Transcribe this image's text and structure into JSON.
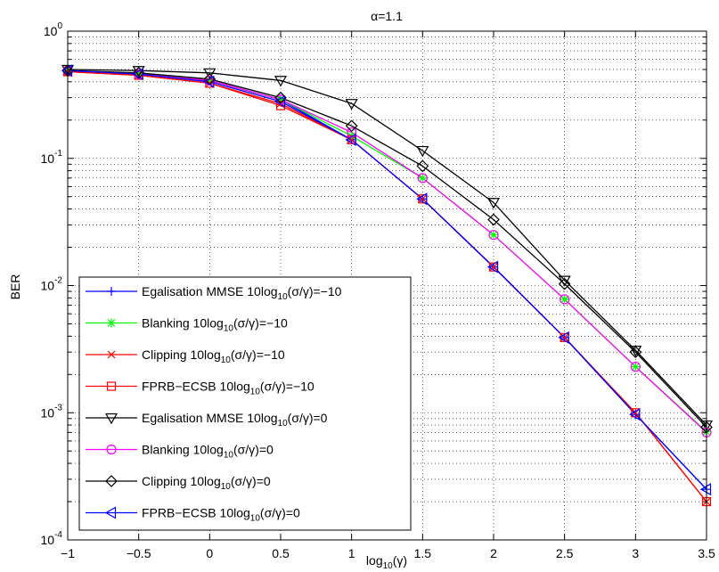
{
  "chart_data": {
    "type": "line",
    "title": "α=1.1",
    "xlabel": "log",
    "xlabel_sub": "10",
    "xlabel_tail": "(γ)",
    "ylabel": "BER",
    "xlim": [
      -1,
      3.5
    ],
    "ylim": [
      0.0001,
      1
    ],
    "yscale": "log",
    "grid": true,
    "legend_position": "bottom-left",
    "x_ticks": [
      -1,
      -0.5,
      0,
      0.5,
      1,
      1.5,
      2,
      2.5,
      3,
      3.5
    ],
    "x_tick_labels": [
      "−1",
      "−0.5",
      "0",
      "0.5",
      "1",
      "1.5",
      "2",
      "2.5",
      "3",
      "3.5"
    ],
    "y_ticks": [
      {
        "base": "10",
        "exp": "0",
        "value": 1
      },
      {
        "base": "10",
        "exp": "-1",
        "value": 0.1
      },
      {
        "base": "10",
        "exp": "-2",
        "value": 0.01
      },
      {
        "base": "10",
        "exp": "-3",
        "value": 0.001
      },
      {
        "base": "10",
        "exp": "-4",
        "value": 0.0001
      }
    ],
    "x": [
      -1,
      -0.5,
      0,
      0.5,
      1,
      1.5,
      2,
      2.5,
      3,
      3.5
    ],
    "series": [
      {
        "name_pre": "Egalisation MMSE 10log",
        "name_sub": "10",
        "name_post": "(σ/γ)=−10",
        "color": "#0000ff",
        "marker": "plus",
        "values": [
          0.49,
          0.46,
          0.41,
          0.29,
          0.14,
          0.048,
          0.014,
          0.0039,
          0.00097,
          0.00025
        ]
      },
      {
        "name_pre": "Blanking 10log",
        "name_sub": "10",
        "name_post": "(σ/γ)=−10",
        "color": "#00ff00",
        "marker": "asterisk",
        "values": [
          0.49,
          0.46,
          0.41,
          0.29,
          0.15,
          0.07,
          0.025,
          0.0078,
          0.0023,
          0.00071
        ]
      },
      {
        "name_pre": "Clipping 10log",
        "name_sub": "10",
        "name_post": "(σ/γ)=−10",
        "color": "#ff0000",
        "marker": "x",
        "values": [
          0.48,
          0.45,
          0.39,
          0.27,
          0.14,
          0.048,
          0.014,
          0.0039,
          0.001,
          0.0002
        ]
      },
      {
        "name_pre": "FPRB−ECSB 10log",
        "name_sub": "10",
        "name_post": "(σ/γ)=−10",
        "color": "#ff0000",
        "marker": "square",
        "values": [
          0.48,
          0.45,
          0.39,
          0.26,
          0.14,
          0.048,
          0.014,
          0.0039,
          0.001,
          0.0002
        ]
      },
      {
        "name_pre": "Egalisation MMSE 10log",
        "name_sub": "10",
        "name_post": "(σ/γ)=0",
        "color": "#000000",
        "marker": "triangle-down",
        "values": [
          0.5,
          0.49,
          0.47,
          0.41,
          0.27,
          0.115,
          0.045,
          0.011,
          0.0031,
          0.0008
        ]
      },
      {
        "name_pre": "Blanking 10log",
        "name_sub": "10",
        "name_post": "(σ/γ)=0",
        "color": "#ff00ff",
        "marker": "circle",
        "values": [
          0.49,
          0.46,
          0.41,
          0.29,
          0.16,
          0.07,
          0.025,
          0.0078,
          0.0023,
          0.0007
        ]
      },
      {
        "name_pre": "Clipping 10log",
        "name_sub": "10",
        "name_post": "(σ/γ)=0",
        "color": "#000000",
        "marker": "diamond",
        "values": [
          0.49,
          0.47,
          0.42,
          0.3,
          0.18,
          0.087,
          0.033,
          0.0103,
          0.003,
          0.00077
        ]
      },
      {
        "name_pre": "FPRB−ECSB 10log",
        "name_sub": "10",
        "name_post": "(σ/γ)=0",
        "color": "#0000ff",
        "marker": "triangle-left",
        "values": [
          0.49,
          0.46,
          0.4,
          0.28,
          0.14,
          0.048,
          0.014,
          0.0039,
          0.00097,
          0.00025
        ]
      }
    ]
  }
}
